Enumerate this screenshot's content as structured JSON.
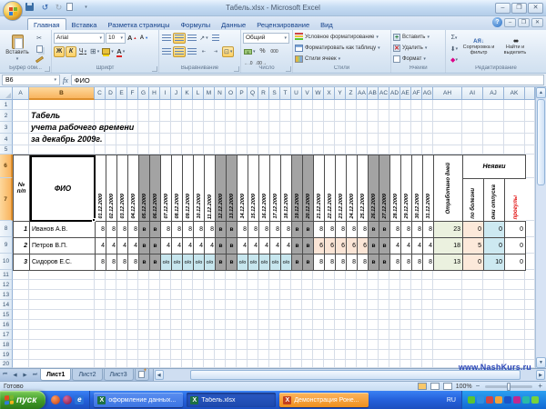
{
  "window": {
    "title": "Табель.xlsx - Microsoft Excel"
  },
  "ribbon": {
    "tabs": [
      {
        "label": "Главная",
        "active": true
      },
      {
        "label": "Вставка",
        "active": false
      },
      {
        "label": "Разметка страницы",
        "active": false
      },
      {
        "label": "Формулы",
        "active": false
      },
      {
        "label": "Данные",
        "active": false
      },
      {
        "label": "Рецензирование",
        "active": false
      },
      {
        "label": "Вид",
        "active": false
      }
    ],
    "paste_label": "Вставить",
    "font_name": "Arial",
    "font_size": "10",
    "bold_glyph": "Ж",
    "italic_glyph": "К",
    "underline_glyph": "Ч",
    "font_glyph": "А",
    "number_format": "Общий",
    "percent_glyph": "%",
    "thousands_glyph": "000",
    "sigma_glyph": "Σ",
    "sort_icon_text": "АЯ",
    "styles_items": [
      "Условное форматирование",
      "Форматировать как таблицу",
      "Стили ячеек"
    ],
    "cells_items": [
      "Вставить",
      "Удалить",
      "Формат"
    ],
    "editing_items": [
      "Сортировка и фильтр",
      "Найти и выделить"
    ],
    "groups": [
      "Буфер обм...",
      "Шрифт",
      "Выравнивание",
      "Число",
      "Стили",
      "Ячейки",
      "Редактирование"
    ]
  },
  "formula_bar": {
    "name_box": "B6",
    "fx_label": "fx",
    "value": "ФИО"
  },
  "sheet": {
    "columns": [
      "A",
      "B",
      "C",
      "D",
      "E",
      "F",
      "G",
      "H",
      "I",
      "J",
      "K",
      "L",
      "M",
      "N",
      "O",
      "P",
      "Q",
      "R",
      "S",
      "T",
      "U",
      "V",
      "W",
      "X",
      "Y",
      "Z",
      "AA",
      "AB",
      "AC",
      "AD",
      "AE",
      "AF",
      "AG",
      "AH",
      "AI",
      "AJ",
      "AK"
    ],
    "rows": [
      "1",
      "2",
      "3",
      "4",
      "5",
      "6",
      "7",
      "8",
      "9",
      "10",
      "11",
      "12",
      "13",
      "14",
      "15",
      "16",
      "17",
      "18",
      "19",
      "20"
    ],
    "selected_column": "B",
    "selected_rows": [
      "6",
      "7"
    ],
    "title_lines": [
      "Табель",
      "учета рабочего времени",
      "за декабрь 2009г."
    ],
    "table": {
      "num_header": "№ п/п",
      "fio_header": "ФИО",
      "dates": [
        "01.12.2009",
        "02.12.2009",
        "03.12.2009",
        "04.12.2009",
        "05.12.2009",
        "06.12.2009",
        "07.12.2009",
        "08.12.2009",
        "09.12.2009",
        "10.12.2009",
        "11.12.2009",
        "12.12.2009",
        "13.12.2009",
        "14.12.2009",
        "15.12.2009",
        "16.12.2009",
        "17.12.2009",
        "18.12.2009",
        "19.12.2009",
        "20.12.2009",
        "21.12.2009",
        "22.12.2009",
        "23.12.2009",
        "24.12.2009",
        "25.12.2009",
        "26.12.2009",
        "27.12.2009",
        "28.12.2009",
        "29.12.2009",
        "30.12.2009",
        "31.12.2009"
      ],
      "weekend_days": [
        5,
        6,
        12,
        13,
        19,
        20,
        26,
        27
      ],
      "worked_header": "Отработано дней",
      "absence_header": "Неявки",
      "absence_columns": [
        "по болезни",
        "дни отпуска",
        "прогулы"
      ],
      "employees": [
        {
          "num": "1",
          "name": "Иванов А.В.",
          "day_types": "wwwwvvwwwwwvvwwwwwvvwwwwwvvwwww",
          "type_values": {
            "w": "8",
            "v": "в"
          },
          "totals": [
            "23",
            "0",
            "0",
            "0"
          ]
        },
        {
          "num": "2",
          "name": "Петров В.П.",
          "day_types": "wwwwvvwwwwwvvwwwwwvvsssssvvwwww",
          "type_values": {
            "w": "4",
            "v": "в",
            "s": "6"
          },
          "totals": [
            "18",
            "5",
            "0",
            "0"
          ]
        },
        {
          "num": "3",
          "name": "Сидоров Е.С.",
          "day_types": "wwwwvvooooovvooooovvwwwwwvvwwww",
          "type_values": {
            "w": "8",
            "v": "в",
            "o": "о/о"
          },
          "totals": [
            "13",
            "0",
            "10",
            "0"
          ]
        }
      ]
    }
  },
  "sheet_tabs": [
    "Лист1",
    "Лист2",
    "Лист3"
  ],
  "active_sheet": "Лист1",
  "status": {
    "ready": "Готово",
    "zoom": "100%"
  },
  "watermark": "www.NashKurs.ru",
  "taskbar": {
    "start": "пуск",
    "tasks": [
      {
        "label": "оформление данных...",
        "state": "normal"
      },
      {
        "label": "Табель.xlsx",
        "state": "active"
      },
      {
        "label": "Демонстрация Роне...",
        "state": "alert"
      }
    ],
    "lang": "RU",
    "tray_icon_colors": [
      "#58c431",
      "#2f8fe0",
      "#d04545",
      "#f2a33c",
      "#1b54c9",
      "#c02890",
      "#28b9a8",
      "#77d23c"
    ]
  },
  "colors": {
    "weekend_cell": "#a3a3a3",
    "vacation_cell": "#c7e6ee",
    "sick_cell": "#fbe5d6",
    "worked_total": "#ebf1df",
    "sick_total": "#fce9da",
    "vacation_total": "#cde9f1",
    "absent_header_text": "#e00000",
    "selected_header": "#f9b55f"
  }
}
